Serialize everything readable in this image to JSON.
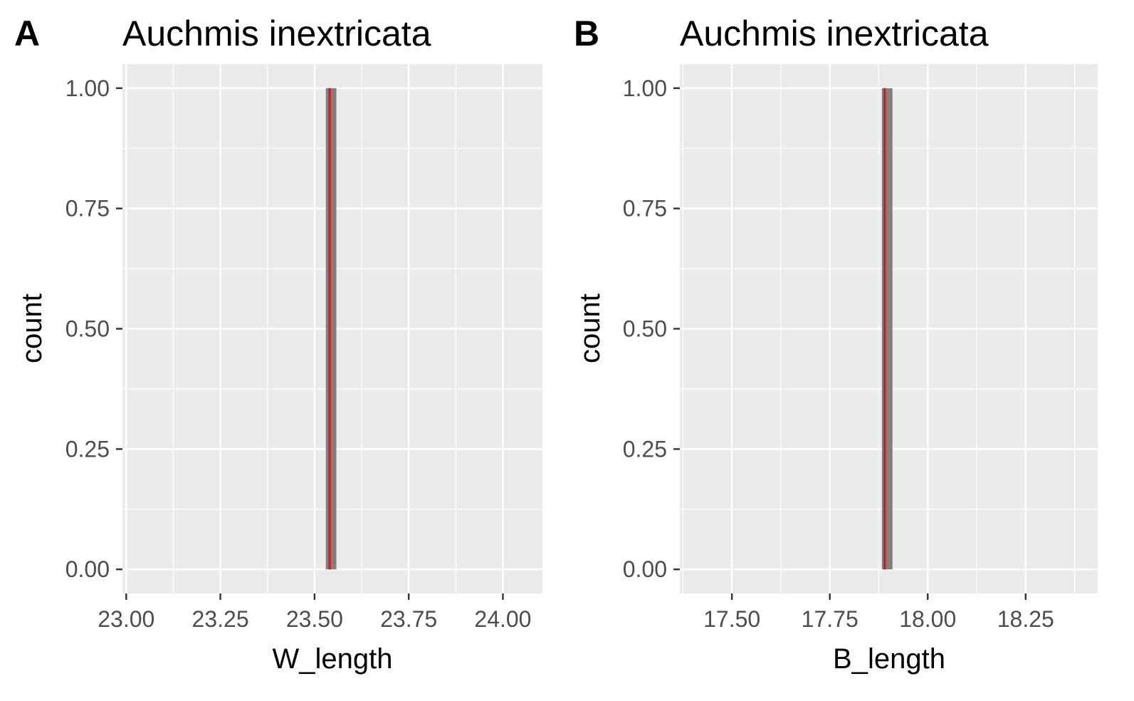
{
  "chart_data": [
    {
      "panel_tag": "A",
      "type": "bar",
      "title": "Auchmis inextricata",
      "xlabel": "W_length",
      "ylabel": "count",
      "xlim": [
        22.99,
        24.105
      ],
      "ylim": [
        -0.05,
        1.05
      ],
      "x_ticks": [
        23.0,
        23.25,
        23.5,
        23.75,
        24.0
      ],
      "x_tick_labels": [
        "23.00",
        "23.25",
        "23.50",
        "23.75",
        "24.00"
      ],
      "y_ticks": [
        0.0,
        0.25,
        0.5,
        0.75,
        1.0
      ],
      "y_tick_labels": [
        "0.00",
        "0.25",
        "0.50",
        "0.75",
        "1.00"
      ],
      "bars": [
        {
          "x_start": 23.53,
          "x_end": 23.558,
          "count": 1
        }
      ],
      "reference_line": {
        "x": 23.54,
        "color": "#e0141e"
      },
      "bar_color": "#808080",
      "panel_background": "#ebebeb",
      "grid": true
    },
    {
      "panel_tag": "B",
      "type": "bar",
      "title": "Auchmis inextricata",
      "xlabel": "B_length",
      "ylabel": "count",
      "xlim": [
        17.367,
        18.434
      ],
      "ylim": [
        -0.05,
        1.05
      ],
      "x_ticks": [
        17.5,
        17.75,
        18.0,
        18.25
      ],
      "x_tick_labels": [
        "17.50",
        "17.75",
        "18.00",
        "18.25"
      ],
      "y_ticks": [
        0.0,
        0.25,
        0.5,
        0.75,
        1.0
      ],
      "y_tick_labels": [
        "0.00",
        "0.25",
        "0.50",
        "0.75",
        "1.00"
      ],
      "bars": [
        {
          "x_start": 17.883,
          "x_end": 17.91,
          "count": 1
        }
      ],
      "reference_line": {
        "x": 17.89,
        "color": "#e0141e"
      },
      "bar_color": "#808080",
      "panel_background": "#ebebeb",
      "grid": true
    }
  ]
}
